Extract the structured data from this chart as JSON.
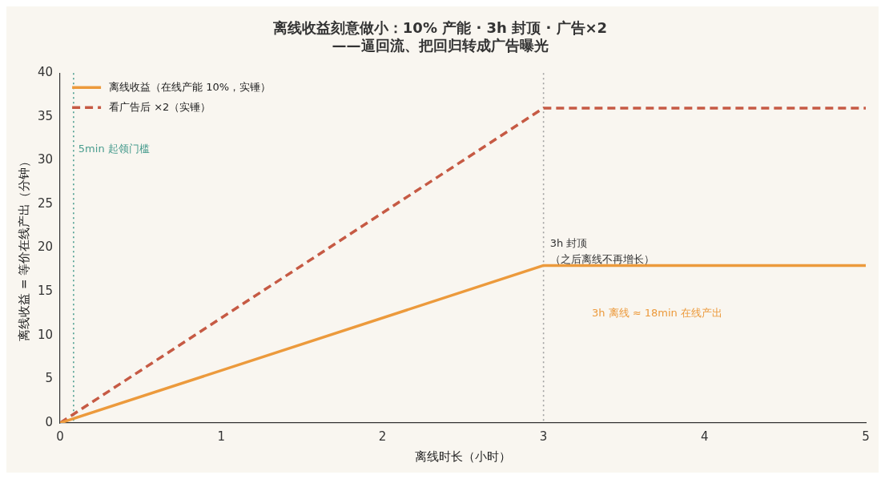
{
  "chart_data": {
    "type": "line",
    "title": "离线收益刻意做小：10% 产能 · 3h 封顶 · 广告×2\n——逼回流、把回归转成广告曝光",
    "xlabel": "离线时长（小时）",
    "ylabel": "离线收益 = 等价在线产出（分钟）",
    "x": [
      0,
      3,
      5
    ],
    "series": [
      {
        "name": "离线收益（在线产能 10%，实锤）",
        "color": "#ec9a3c",
        "values": [
          0,
          18,
          18
        ],
        "line_style": "solid"
      },
      {
        "name": "看广告后 ×2（实锤）",
        "color": "#c65a44",
        "values": [
          0,
          36,
          36
        ],
        "line_style": "dashed"
      }
    ],
    "xlim": [
      0,
      5
    ],
    "xticks": [
      0,
      1,
      2,
      3,
      4,
      5
    ],
    "ylim": [
      0,
      40
    ],
    "yticks": [
      0,
      5,
      10,
      15,
      20,
      25,
      30,
      35,
      40
    ],
    "grid": false,
    "legend": "top left",
    "marker": "none",
    "ref_lines": [
      {
        "axis": "x",
        "value": 0.0833,
        "label": "5min 起领门槛",
        "color": "#4a9d8f",
        "line_style": "dotted"
      },
      {
        "axis": "x",
        "value": 3,
        "color": "#a0a0a0",
        "line_style": "dotted"
      }
    ],
    "annotations": [
      {
        "text": "3h 封顶",
        "x": 3,
        "y": 18
      },
      {
        "text": "（之后离线不再增长）",
        "x": 3,
        "y": 18
      },
      "3h 离线 ≈ 18min 在线产出"
    ]
  }
}
